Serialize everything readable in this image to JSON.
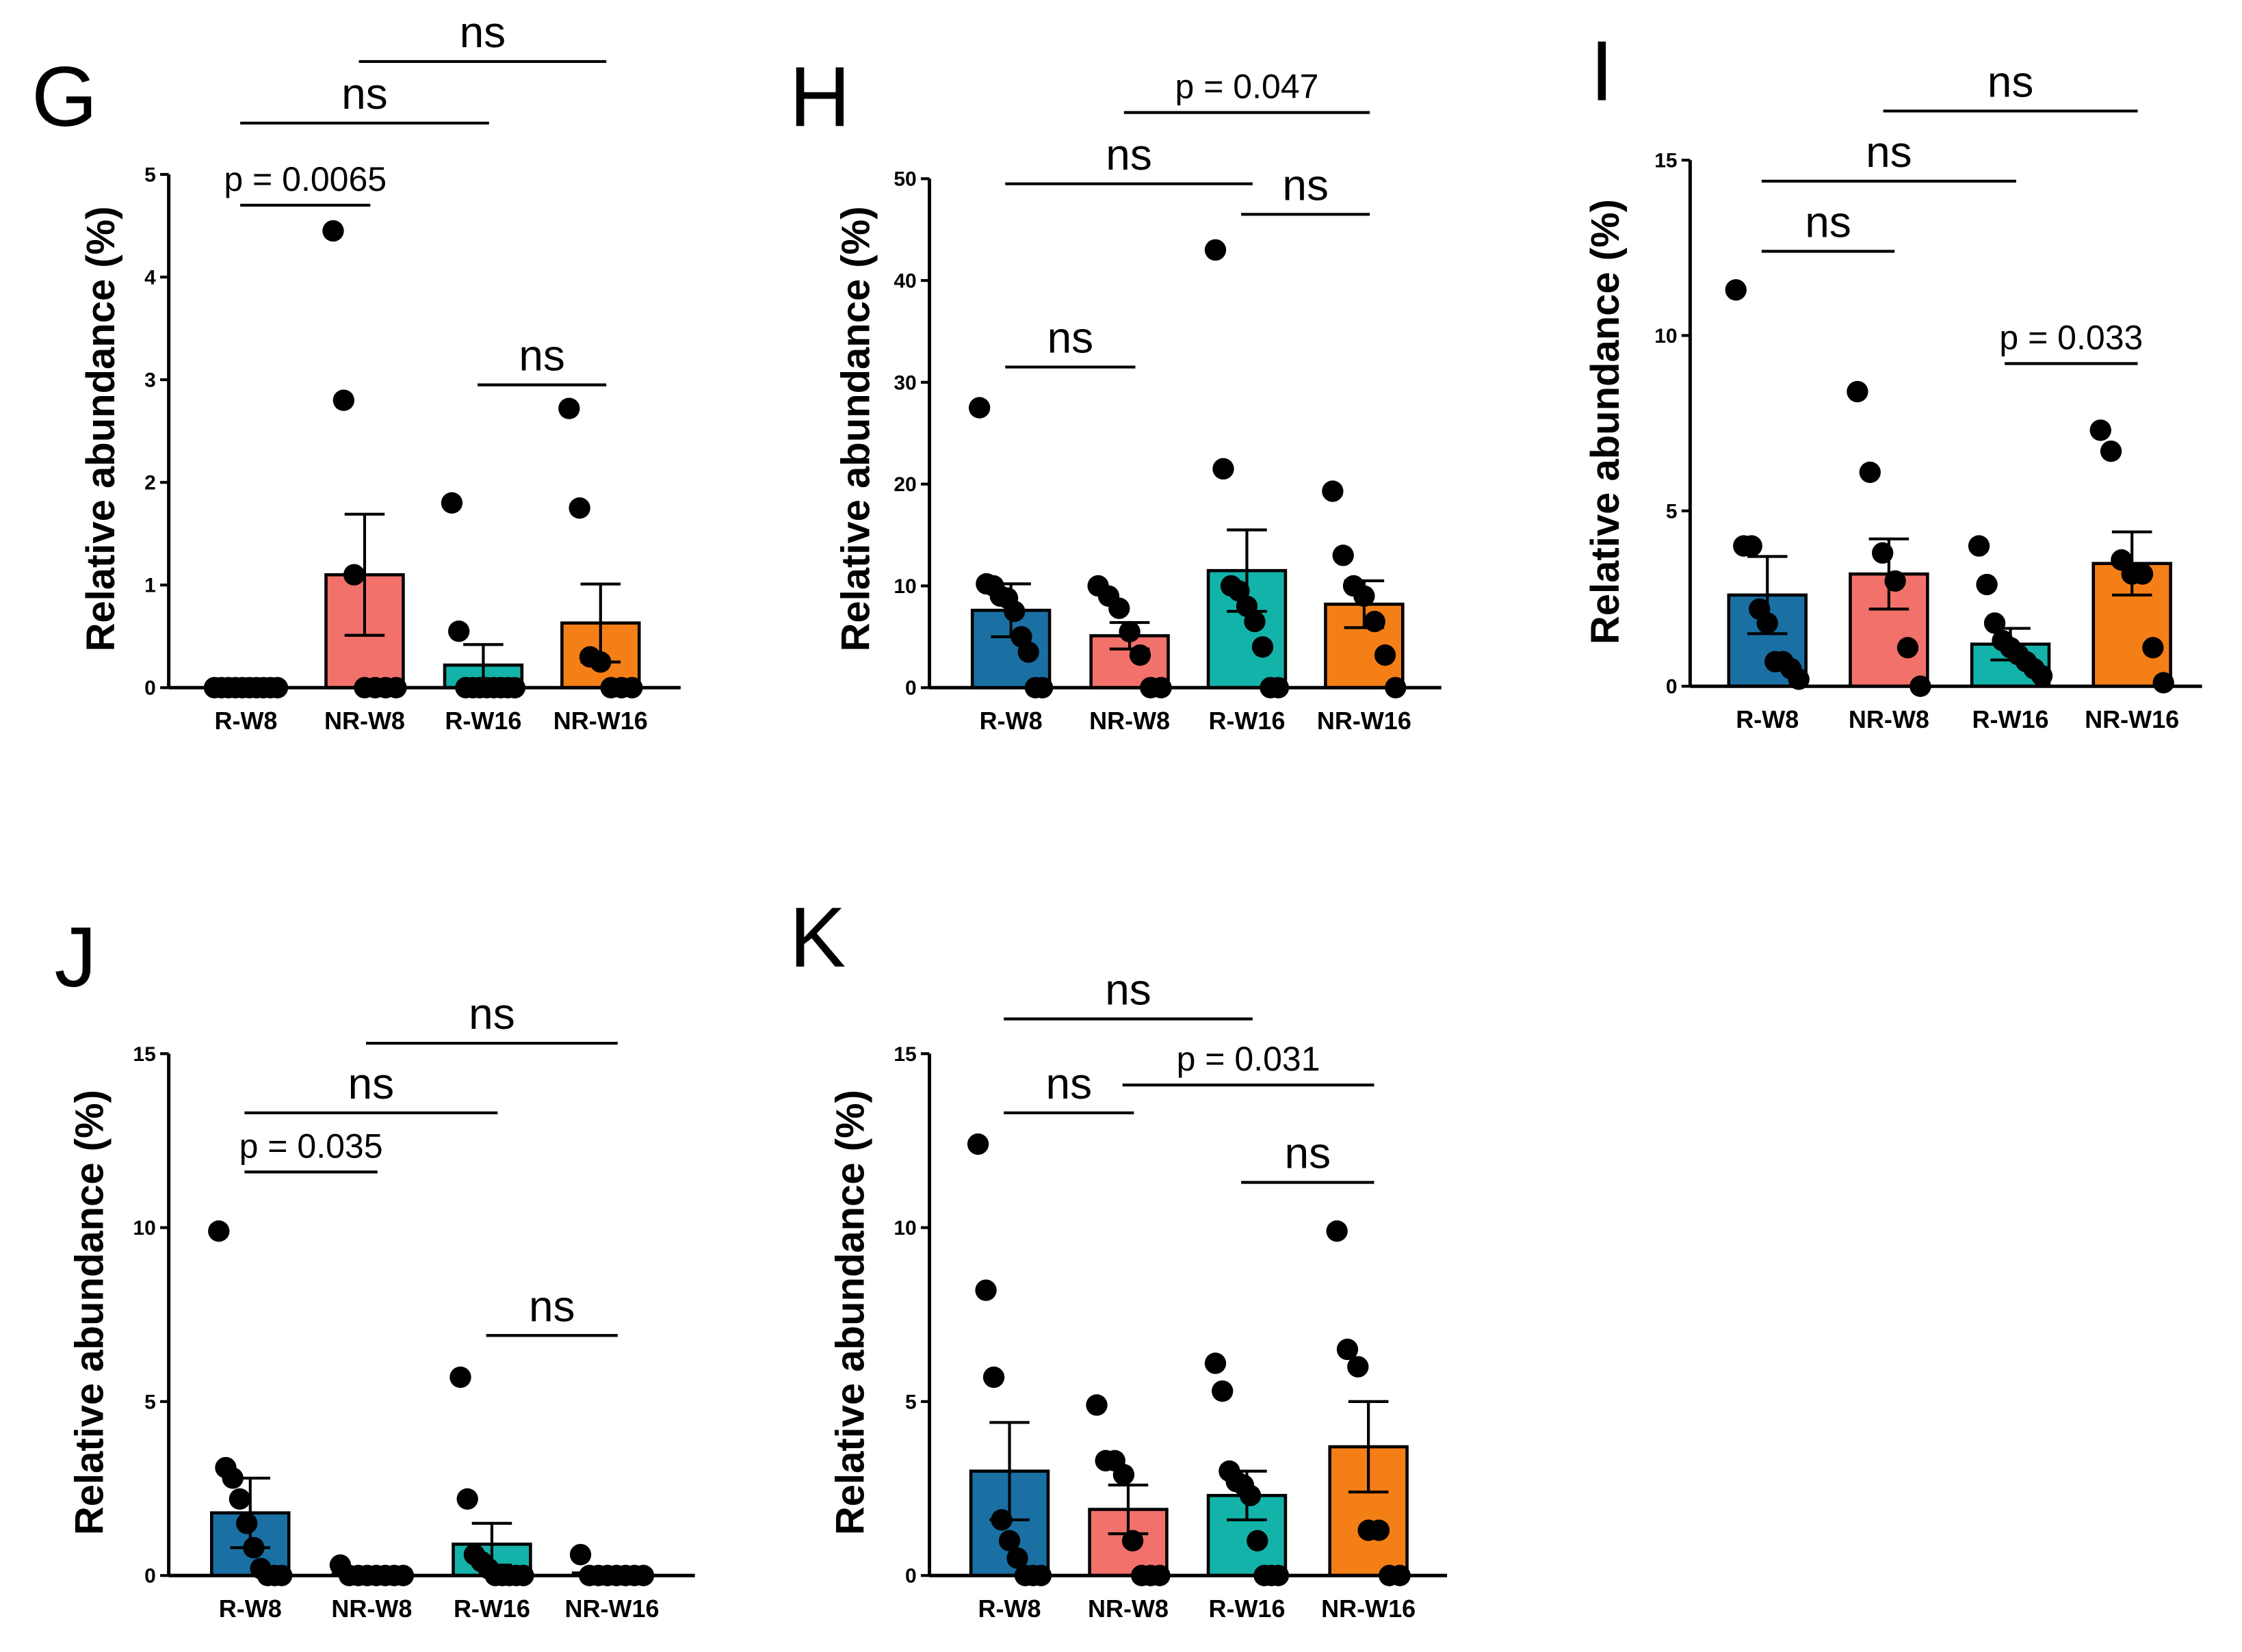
{
  "colors": {
    "R-W8": "#1a70a3",
    "NR-W8": "#f3716b",
    "R-W16": "#14b3aa",
    "NR-W16": "#f57f17",
    "ink": "#000000"
  },
  "chart_data": [
    {
      "panel": "G",
      "type": "bar",
      "ylabel": "Relative abundance (%)",
      "categories": [
        "R-W8",
        "NR-W8",
        "R-W16",
        "NR-W16"
      ],
      "ylim": [
        0,
        5
      ],
      "yticks": [
        "0",
        "1",
        "2",
        "3",
        "4",
        "5"
      ],
      "values": [
        0.0,
        1.1,
        0.22,
        0.63
      ],
      "sem": [
        0.0,
        0.59,
        0.2,
        0.38
      ],
      "points": [
        [
          0,
          0,
          0,
          0,
          0,
          0,
          0,
          0,
          0,
          0
        ],
        [
          4.45,
          2.8,
          1.1,
          0,
          0,
          0,
          0
        ],
        [
          1.8,
          0.55,
          0,
          0,
          0,
          0,
          0,
          0,
          0,
          0
        ],
        [
          2.72,
          1.75,
          0.3,
          0.25,
          0,
          0,
          0
        ]
      ],
      "comparisons": [
        {
          "from": 0,
          "to": 1,
          "label": "p = 0.0065",
          "y": 4.7
        },
        {
          "from": 0,
          "to": 2,
          "label": "ns",
          "y": 5.5
        },
        {
          "from": 1,
          "to": 3,
          "label": "ns",
          "y": 6.1
        },
        {
          "from": 2,
          "to": 3,
          "label": "ns",
          "y": 2.95
        }
      ]
    },
    {
      "panel": "H",
      "type": "bar",
      "ylabel": "Relative abundance (%)",
      "categories": [
        "R-W8",
        "NR-W8",
        "R-W16",
        "NR-W16"
      ],
      "ylim": [
        0,
        50
      ],
      "yticks": [
        "0",
        "10",
        "20",
        "30",
        "40",
        "50"
      ],
      "values": [
        7.6,
        5.1,
        11.5,
        8.2
      ],
      "sem": [
        2.6,
        1.3,
        4.0,
        2.3
      ],
      "points": [
        [
          27.5,
          10.2,
          10.0,
          9.0,
          8.8,
          7.5,
          5.0,
          3.5,
          0,
          0
        ],
        [
          10.0,
          9.0,
          7.8,
          5.5,
          3.2,
          0,
          0
        ],
        [
          43.0,
          21.5,
          10.0,
          9.5,
          8.0,
          6.5,
          4.0,
          0,
          0
        ],
        [
          19.3,
          13.0,
          10.0,
          9.0,
          6.5,
          3.2,
          0
        ]
      ],
      "comparisons": [
        {
          "from": 0,
          "to": 1,
          "label": "ns",
          "y": 31.5
        },
        {
          "from": 0,
          "to": 2,
          "label": "ns",
          "y": 49.5
        },
        {
          "from": 1,
          "to": 3,
          "label": "p = 0.047",
          "y": 56.5
        },
        {
          "from": 2,
          "to": 3,
          "label": "ns",
          "y": 46.5
        }
      ]
    },
    {
      "panel": "I",
      "type": "bar",
      "ylabel": "Relative abundance (%)",
      "categories": [
        "R-W8",
        "NR-W8",
        "R-W16",
        "NR-W16"
      ],
      "ylim": [
        0,
        15
      ],
      "yticks": [
        "0",
        "5",
        "10",
        "15"
      ],
      "values": [
        2.6,
        3.2,
        1.2,
        3.5
      ],
      "sem": [
        1.1,
        1.0,
        0.45,
        0.9
      ],
      "points": [
        [
          11.3,
          4.0,
          4.0,
          2.2,
          1.8,
          0.7,
          0.7,
          0.5,
          0.2
        ],
        [
          8.4,
          6.1,
          3.8,
          3.0,
          1.1,
          0
        ],
        [
          4.0,
          2.9,
          1.8,
          1.3,
          1.1,
          0.9,
          0.7,
          0.5,
          0.3
        ],
        [
          7.3,
          6.7,
          3.6,
          3.2,
          3.2,
          1.1,
          0.1
        ]
      ],
      "comparisons": [
        {
          "from": 0,
          "to": 1,
          "label": "ns",
          "y": 12.4
        },
        {
          "from": 0,
          "to": 2,
          "label": "ns",
          "y": 14.4
        },
        {
          "from": 1,
          "to": 3,
          "label": "ns",
          "y": 16.4
        },
        {
          "from": 2,
          "to": 3,
          "label": "p = 0.033",
          "y": 9.2
        }
      ]
    },
    {
      "panel": "J",
      "type": "bar",
      "ylabel": "Relative abundance (%)",
      "categories": [
        "R-W8",
        "NR-W8",
        "R-W16",
        "NR-W16"
      ],
      "ylim": [
        0,
        15
      ],
      "yticks": [
        "0",
        "5",
        "10",
        "15"
      ],
      "values": [
        1.8,
        0.05,
        0.9,
        0.07
      ],
      "sem": [
        1.0,
        0.04,
        0.6,
        0.06
      ],
      "points": [
        [
          9.9,
          3.1,
          2.8,
          2.2,
          1.5,
          0.8,
          0.2,
          0,
          0,
          0
        ],
        [
          0.3,
          0,
          0,
          0,
          0,
          0,
          0,
          0
        ],
        [
          5.7,
          2.2,
          0.6,
          0.4,
          0.2,
          0,
          0,
          0,
          0,
          0
        ],
        [
          0.6,
          0,
          0,
          0,
          0,
          0,
          0,
          0
        ]
      ],
      "comparisons": [
        {
          "from": 0,
          "to": 1,
          "label": "p = 0.035",
          "y": 11.6
        },
        {
          "from": 0,
          "to": 2,
          "label": "ns",
          "y": 13.3
        },
        {
          "from": 1,
          "to": 3,
          "label": "ns",
          "y": 15.3
        },
        {
          "from": 2,
          "to": 3,
          "label": "ns",
          "y": 6.9
        }
      ]
    },
    {
      "panel": "K",
      "type": "bar",
      "ylabel": "Relative abundance (%)",
      "categories": [
        "R-W8",
        "NR-W8",
        "R-W16",
        "NR-W16"
      ],
      "ylim": [
        0,
        15
      ],
      "yticks": [
        "0",
        "5",
        "10",
        "15"
      ],
      "values": [
        3.0,
        1.9,
        2.3,
        3.7
      ],
      "sem": [
        1.4,
        0.7,
        0.7,
        1.3
      ],
      "points": [
        [
          12.4,
          8.2,
          5.7,
          1.6,
          1.0,
          0.5,
          0,
          0,
          0
        ],
        [
          4.9,
          3.3,
          3.3,
          2.9,
          1.0,
          0,
          0,
          0
        ],
        [
          6.1,
          5.3,
          3.0,
          2.7,
          2.6,
          2.3,
          1.0,
          0,
          0,
          0
        ],
        [
          9.9,
          6.5,
          6.0,
          1.3,
          1.3,
          0,
          0
        ]
      ],
      "comparisons": [
        {
          "from": 0,
          "to": 1,
          "label": "ns",
          "y": 13.3
        },
        {
          "from": 0,
          "to": 2,
          "label": "ns",
          "y": 16.0
        },
        {
          "from": 1,
          "to": 3,
          "label": "p = 0.031",
          "y": 14.1
        },
        {
          "from": 2,
          "to": 3,
          "label": "ns",
          "y": 11.3
        }
      ]
    }
  ]
}
